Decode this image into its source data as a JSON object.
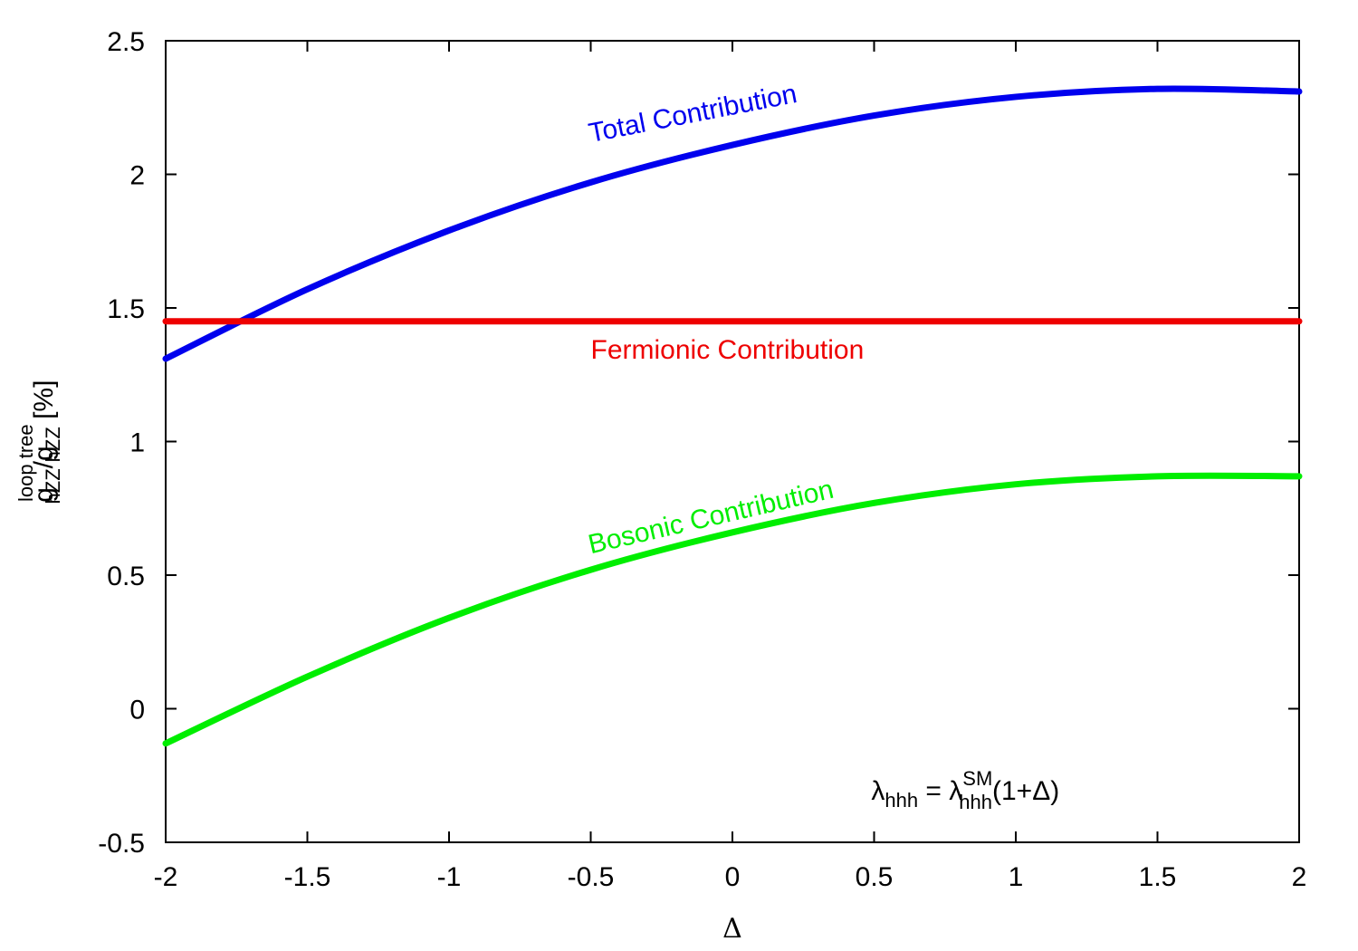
{
  "chart_data": {
    "type": "line",
    "title": "",
    "xlabel": "Δ",
    "ylabel": {
      "base1": "g",
      "sup1": "loop",
      "sub1": "hZZ",
      "slash": "/",
      "base2": "g",
      "sup2": "tree",
      "sub2": "hZZ",
      "unit": " [%]"
    },
    "xlim": [
      -2,
      2
    ],
    "ylim": [
      -0.5,
      2.5
    ],
    "xticks": [
      -2,
      -1.5,
      -1,
      -0.5,
      0,
      0.5,
      1,
      1.5,
      2
    ],
    "xtick_labels": [
      "-2",
      "-1.5",
      "-1",
      "-0.5",
      "0",
      "0.5",
      "1",
      "1.5",
      "2"
    ],
    "yticks": [
      -0.5,
      0,
      0.5,
      1,
      1.5,
      2,
      2.5
    ],
    "ytick_labels": [
      "-0.5",
      "0",
      "0.5",
      "1",
      "1.5",
      "2",
      "2.5"
    ],
    "grid": false,
    "legend": "none",
    "x": [
      -2,
      -1.5,
      -1,
      -0.5,
      0,
      0.5,
      1,
      1.5,
      2
    ],
    "series": [
      {
        "name": "Total Contribution",
        "color": "#0000ee",
        "values": [
          1.31,
          1.57,
          1.79,
          1.97,
          2.11,
          2.22,
          2.29,
          2.32,
          2.31
        ],
        "label_at": [
          -0.5,
          2.12
        ],
        "label_angle": -11
      },
      {
        "name": "Fermionic Contribution",
        "color": "#ee0000",
        "values": [
          1.45,
          1.45,
          1.45,
          1.45,
          1.45,
          1.45,
          1.45,
          1.45,
          1.45
        ],
        "label_at": [
          -0.5,
          1.31
        ],
        "label_angle": 0
      },
      {
        "name": "Bosonic Contribution",
        "color": "#00ee00",
        "values": [
          -0.13,
          0.12,
          0.34,
          0.52,
          0.66,
          0.77,
          0.84,
          0.87,
          0.87
        ],
        "label_at": [
          -0.5,
          0.58
        ],
        "label_angle": -13
      }
    ],
    "annotation": {
      "lambda": "λ",
      "sub_left": "hhh",
      "equals": " = ",
      "sup_right": "SM",
      "sub_right": "hhh",
      "tail": "(1+Δ)",
      "at": [
        0.49,
        -0.34
      ]
    }
  }
}
